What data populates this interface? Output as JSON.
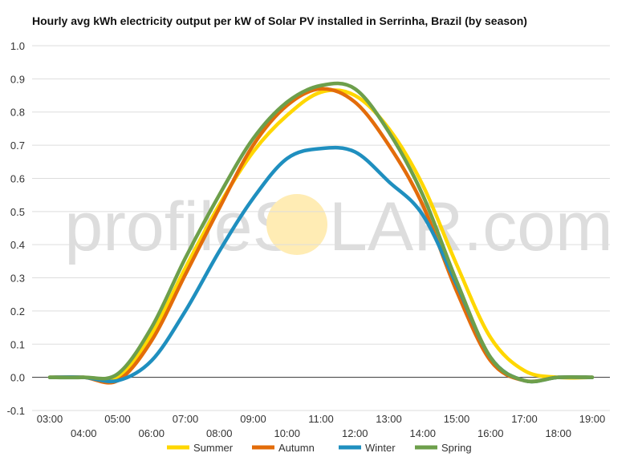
{
  "chart_data": {
    "type": "line",
    "title": "Hourly avg kWh electricity output per kW of Solar PV installed in Serrinha, Brazil (by season)",
    "xlabel": "",
    "ylabel": "",
    "ylim": [
      -0.1,
      1.0
    ],
    "yticks": [
      "-0.1",
      "0.0",
      "0.1",
      "0.2",
      "0.3",
      "0.4",
      "0.5",
      "0.6",
      "0.7",
      "0.8",
      "0.9",
      "1.0"
    ],
    "xticks_upper": [
      "03:00",
      "05:00",
      "07:00",
      "09:00",
      "11:00",
      "13:00",
      "15:00",
      "17:00",
      "19:00"
    ],
    "xticks_lower": [
      "04:00",
      "06:00",
      "08:00",
      "10:00",
      "12:00",
      "14:00",
      "16:00",
      "18:00"
    ],
    "x": [
      "03:00",
      "04:00",
      "05:00",
      "06:00",
      "07:00",
      "08:00",
      "09:00",
      "10:00",
      "11:00",
      "12:00",
      "13:00",
      "14:00",
      "15:00",
      "16:00",
      "17:00",
      "18:00",
      "19:00"
    ],
    "grid": true,
    "legend_position": "bottom",
    "series": [
      {
        "name": "Summer",
        "color": "#FFD700",
        "values": [
          0,
          0,
          0,
          0.13,
          0.33,
          0.52,
          0.68,
          0.79,
          0.86,
          0.85,
          0.75,
          0.58,
          0.34,
          0.12,
          0.02,
          0,
          0
        ]
      },
      {
        "name": "Autumn",
        "color": "#E36C0A",
        "values": [
          0,
          0,
          -0.01,
          0.11,
          0.31,
          0.51,
          0.7,
          0.82,
          0.87,
          0.83,
          0.7,
          0.52,
          0.26,
          0.05,
          -0.01,
          0,
          0
        ]
      },
      {
        "name": "Winter",
        "color": "#1F8FBF",
        "values": [
          0,
          0,
          -0.01,
          0.05,
          0.2,
          0.38,
          0.54,
          0.66,
          0.69,
          0.68,
          0.59,
          0.49,
          0.28,
          0.06,
          -0.01,
          0,
          0
        ]
      },
      {
        "name": "Spring",
        "color": "#6D9F4B",
        "values": [
          0,
          0,
          0.01,
          0.15,
          0.36,
          0.55,
          0.72,
          0.83,
          0.88,
          0.87,
          0.74,
          0.55,
          0.29,
          0.06,
          -0.01,
          0,
          0
        ]
      }
    ]
  },
  "watermark": {
    "text_left": "profileS",
    "text_right": "LAR.com",
    "sun_color": "#FFE9A8"
  }
}
